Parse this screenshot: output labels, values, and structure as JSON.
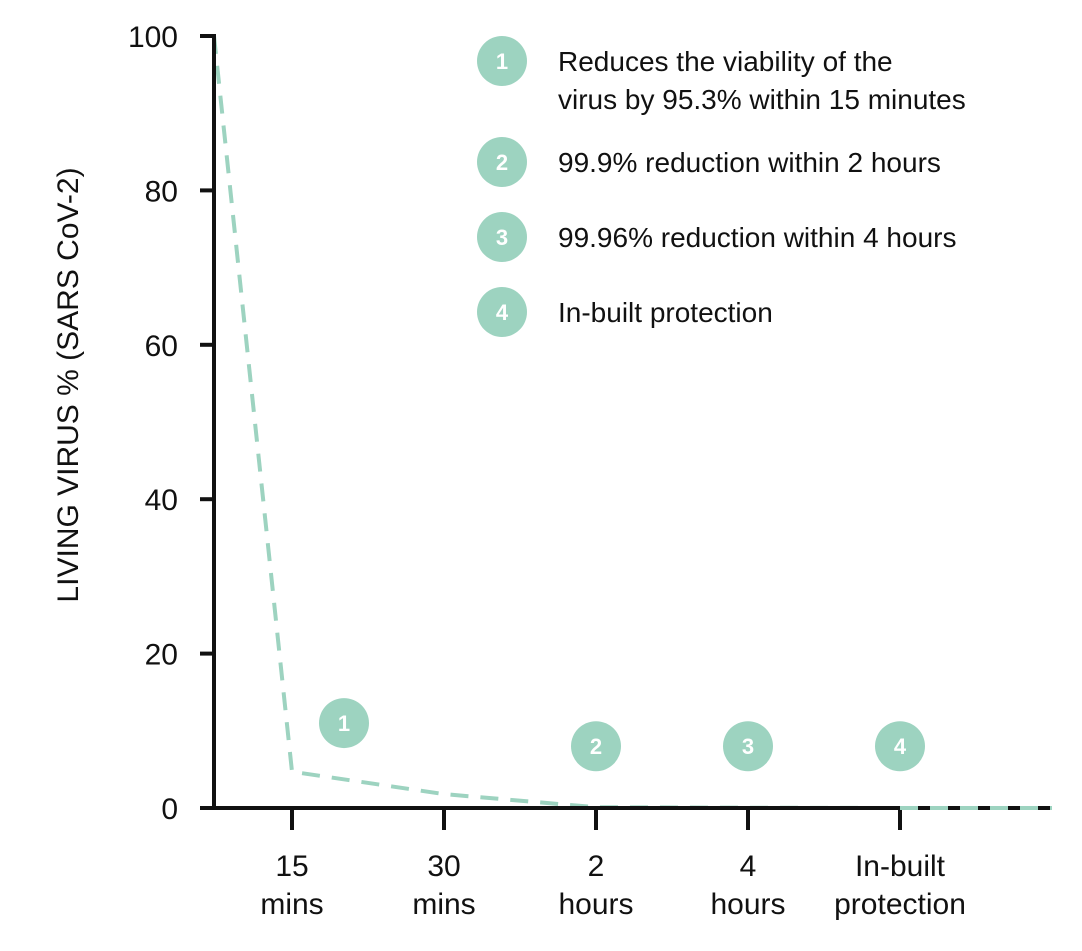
{
  "chart_data": {
    "type": "line",
    "title": "",
    "xlabel": "",
    "ylabel": "LIVING VIRUS % (SARS CoV-2)",
    "ylim": [
      0,
      100
    ],
    "yticks": [
      0,
      20,
      40,
      60,
      80,
      100
    ],
    "categories": [
      [
        "15",
        "mins"
      ],
      [
        "30",
        "mins"
      ],
      [
        "2",
        "hours"
      ],
      [
        "4",
        "hours"
      ],
      [
        "In-built",
        "protection"
      ]
    ],
    "series": [
      {
        "style": "dashed",
        "color": "#9dd3c0",
        "points": [
          {
            "x": "start",
            "y": 100
          },
          {
            "x": "15 mins",
            "y": 4.7
          },
          {
            "x": "30 mins",
            "y": 1.8
          },
          {
            "x": "2 hours",
            "y": 0.1
          },
          {
            "x": "4 hours",
            "y": 0.04
          },
          {
            "x": "In-built protection",
            "y": 0
          },
          {
            "x": "end",
            "y": 0
          }
        ]
      }
    ],
    "markers": [
      {
        "label": "1",
        "near": "15 mins",
        "y": 11
      },
      {
        "label": "2",
        "near": "2 hours",
        "y": 8
      },
      {
        "label": "3",
        "near": "4 hours",
        "y": 8
      },
      {
        "label": "4",
        "near": "In-built protection",
        "y": 8
      }
    ],
    "legend": {
      "placement": "top-right",
      "items": [
        {
          "badge": "1",
          "lines": [
            "Reduces the viability of the",
            "virus by 95.3% within 15 minutes"
          ]
        },
        {
          "badge": "2",
          "lines": [
            "99.9% reduction within 2 hours"
          ]
        },
        {
          "badge": "3",
          "lines": [
            "99.96% reduction within 4 hours"
          ]
        },
        {
          "badge": "4",
          "lines": [
            "In-built protection"
          ]
        }
      ]
    },
    "colors": {
      "accent": "#9dd3c0",
      "axis": "#111111"
    }
  }
}
